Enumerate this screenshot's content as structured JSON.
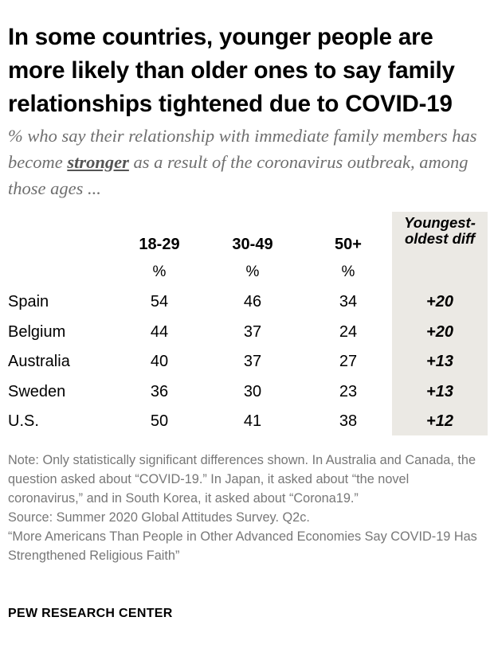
{
  "title": "In some countries, younger people are more likely than older ones to say family relationships tightened due to COVID-19",
  "subtitle": {
    "before": "% who say their relationship with immediate family members has become ",
    "emphasis": "stronger",
    "after": " as a result of the coronavirus outbreak, among those ages ..."
  },
  "chart_data": {
    "type": "table",
    "columns": [
      "18-29",
      "30-49",
      "50+"
    ],
    "unit": "%",
    "diff_header": "Youngest-oldest diff",
    "rows": [
      {
        "country": "Spain",
        "values": [
          54,
          46,
          34
        ],
        "diff": "+20"
      },
      {
        "country": "Belgium",
        "values": [
          44,
          37,
          24
        ],
        "diff": "+20"
      },
      {
        "country": "Australia",
        "values": [
          40,
          37,
          27
        ],
        "diff": "+13"
      },
      {
        "country": "Sweden",
        "values": [
          36,
          30,
          23
        ],
        "diff": "+13"
      },
      {
        "country": "U.S.",
        "values": [
          50,
          41,
          38
        ],
        "diff": "+12"
      }
    ]
  },
  "notes": {
    "note": "Note: Only statistically significant differences shown. In Australia and Canada, the question asked about “COVID-19.” In Japan, it asked about “the novel coronavirus,” and in South Korea, it asked about “Corona19.”",
    "source": "Source: Summer 2020 Global Attitudes Survey. Q2c.",
    "report": "“More Americans Than People in Other Advanced Economies Say COVID-19 Has Strengthened Religious Faith”"
  },
  "footer": "PEW RESEARCH CENTER",
  "colors": {
    "diff_bg": "#ebe9e4",
    "note_text": "#777777",
    "subtitle": "#6f6f6f"
  }
}
